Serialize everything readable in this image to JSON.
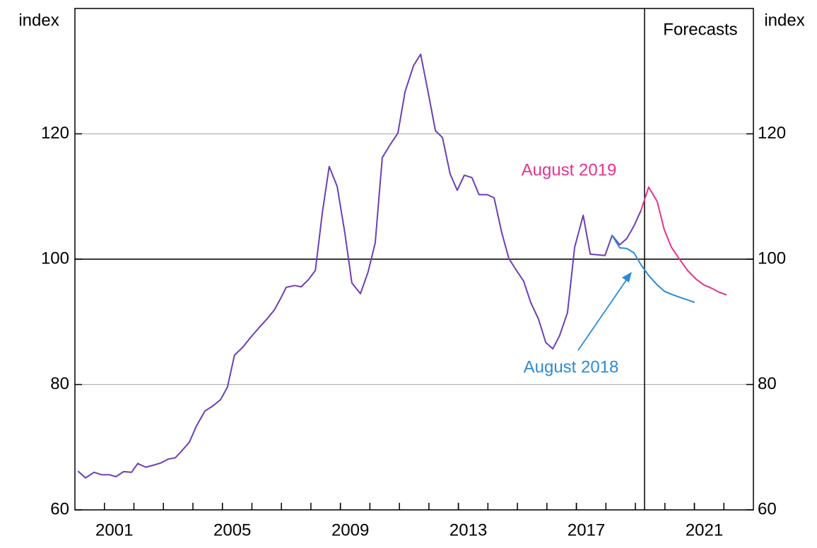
{
  "chart_data": {
    "type": "line",
    "y_label": "index",
    "y2_label": "index",
    "xlim": [
      2000,
      2023
    ],
    "xticks": [
      2001,
      2005,
      2009,
      2013,
      2017,
      2021
    ],
    "minor_xticks": [
      2001,
      2002,
      2003,
      2004,
      2005,
      2006,
      2007,
      2008,
      2009,
      2010,
      2011,
      2012,
      2013,
      2014,
      2015,
      2016,
      2017,
      2018,
      2019,
      2020,
      2021,
      2022
    ],
    "ylim": [
      60,
      140
    ],
    "yticks": [
      60,
      80,
      100,
      120
    ],
    "y2lim": [
      60,
      140
    ],
    "y2ticks": [
      60,
      80,
      100,
      120
    ],
    "grid": true,
    "reference_line": 100,
    "forecast_start": 2019.31,
    "forecast_label": "Forecasts",
    "series": [
      {
        "color": "#6b3fb8",
        "x": [
          2000.1,
          2000.36,
          2000.65,
          2000.91,
          2001.17,
          2001.39,
          2001.65,
          2001.92,
          2002.13,
          2002.4,
          2002.64,
          2002.92,
          2003.16,
          2003.4,
          2003.64,
          2003.88,
          2004.12,
          2004.41,
          2004.65,
          2004.94,
          2005.17,
          2005.41,
          2005.68,
          2005.97,
          2006.23,
          2006.52,
          2006.76,
          2006.97,
          2007.16,
          2007.45,
          2007.67,
          2007.91,
          2008.15,
          2008.39,
          2008.62,
          2008.89,
          2009.15,
          2009.39,
          2009.68,
          2009.94,
          2010.18,
          2010.42,
          2010.69,
          2010.95,
          2011.19,
          2011.48,
          2011.72,
          2011.98,
          2012.22,
          2012.46,
          2012.72,
          2012.96,
          2013.2,
          2013.46,
          2013.7,
          2013.97,
          2014.21,
          2014.47,
          2014.71,
          2014.97,
          2015.21,
          2015.45,
          2015.72,
          2015.96,
          2016.2,
          2016.43,
          2016.7,
          2016.94,
          2017.23,
          2017.47,
          2017.7,
          2017.97,
          2018.21,
          2018.47,
          2018.71,
          2018.95,
          2019.19
        ],
        "values": [
          66.2,
          65.1,
          66.0,
          65.6,
          65.6,
          65.3,
          66.1,
          66.0,
          67.4,
          66.8,
          67.1,
          67.5,
          68.1,
          68.3,
          69.5,
          70.8,
          73.4,
          75.8,
          76.5,
          77.6,
          79.6,
          84.7,
          85.9,
          87.6,
          89.0,
          90.5,
          91.9,
          93.7,
          95.5,
          95.8,
          95.6,
          96.7,
          98.2,
          107.5,
          114.8,
          111.6,
          104.2,
          96.2,
          94.5,
          98.0,
          102.6,
          116.2,
          118.3,
          120.1,
          126.7,
          130.9,
          132.7,
          126.5,
          120.5,
          119.4,
          113.6,
          111.0,
          113.4,
          113.0,
          110.3,
          110.3,
          109.8,
          104.2,
          100.1,
          98.2,
          96.5,
          93.1,
          90.4,
          86.7,
          85.7,
          87.8,
          91.5,
          101.9,
          107.0,
          100.8,
          100.7,
          100.6,
          103.8,
          102.3,
          103.3,
          105.3,
          107.8
        ]
      },
      {
        "name": "August 2019",
        "color": "#e5338c",
        "x": [
          2019.19,
          2019.45,
          2019.74,
          2019.98,
          2020.22,
          2020.51,
          2020.77,
          2021.06,
          2021.32,
          2021.61,
          2021.85,
          2022.09
        ],
        "values": [
          107.8,
          111.5,
          109.2,
          104.7,
          101.9,
          99.9,
          98.2,
          96.8,
          95.9,
          95.3,
          94.7,
          94.3
        ]
      },
      {
        "name": "August 2018",
        "color": "#2b8bd9",
        "x": [
          2018.21,
          2018.47,
          2018.71,
          2018.95,
          2019.19,
          2019.45,
          2019.74,
          2019.98,
          2020.22,
          2020.51,
          2020.77,
          2021.01
        ],
        "values": [
          103.8,
          101.8,
          101.7,
          101.0,
          99.1,
          97.4,
          95.9,
          94.9,
          94.4,
          93.9,
          93.5,
          93.1
        ]
      }
    ]
  }
}
